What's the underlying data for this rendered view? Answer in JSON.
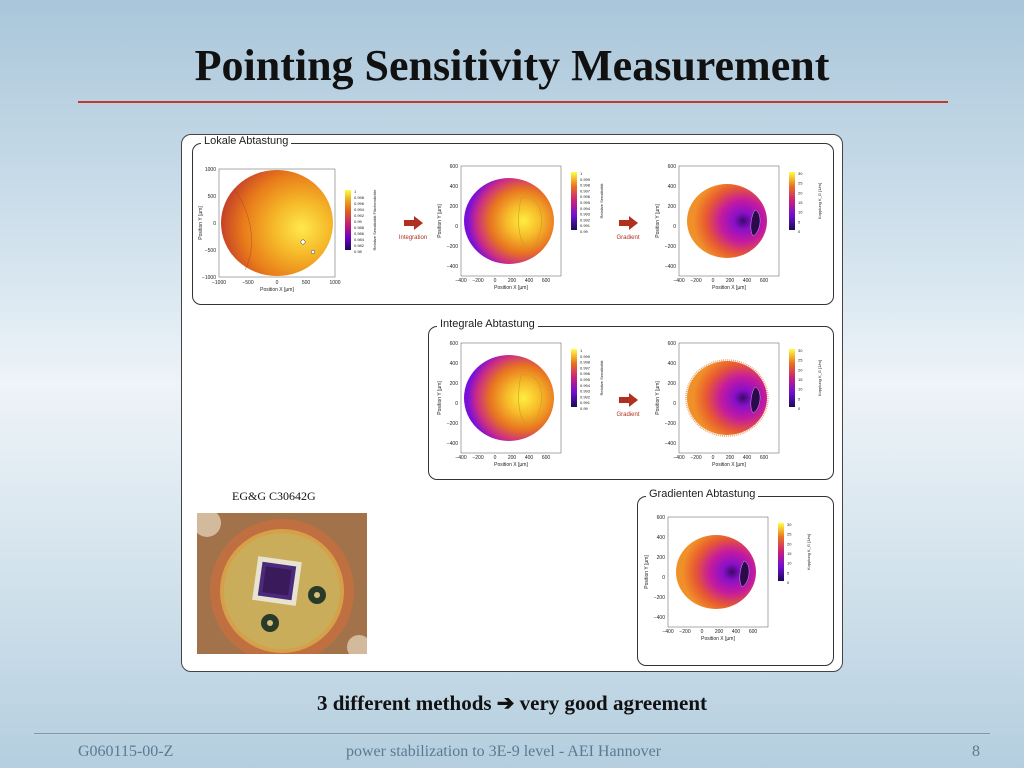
{
  "slide": {
    "title": "Pointing Sensitivity Measurement",
    "summary_prefix": "3 different methods",
    "summary_suffix": "very good agreement",
    "arrow_glyph": "➔"
  },
  "groups": {
    "lokale": "Lokale Abtastung",
    "integrale": "Integrale Abtastung",
    "gradienten": "Gradienten Abtastung"
  },
  "arrows": {
    "integration": "Integration",
    "gradient": "Gradient"
  },
  "axes": {
    "position_x": "Position X [µm]",
    "position_y": "Position Y [µm]",
    "relative_sensitivity_area": "Relative Sensitivität Flächendichte",
    "relative_sensitivity": "Relative Sensitivität",
    "coupling": "Kopplung K_G [1/m]"
  },
  "ticks": {
    "lokal_x": [
      "−1000",
      "−500",
      "0",
      "500",
      "1000"
    ],
    "lokal_y": [
      "1000",
      "500",
      "0",
      "−500",
      "−1000"
    ],
    "small_x": [
      "−400",
      "−200",
      "0",
      "200",
      "400",
      "600"
    ],
    "small_y": [
      "600",
      "400",
      "200",
      "0",
      "−200",
      "−400"
    ],
    "colorbar_lokal": [
      "1",
      "0.998",
      "0.996",
      "0.994",
      "0.992",
      "0.99",
      "0.988",
      "0.986",
      "0.984",
      "0.982",
      "0.98"
    ],
    "colorbar_integ": [
      "1",
      "0.999",
      "0.998",
      "0.997",
      "0.996",
      "0.995",
      "0.994",
      "0.993",
      "0.992",
      "0.991",
      "0.99"
    ],
    "colorbar_coupling": [
      "30",
      "25",
      "20",
      "15",
      "10",
      "5",
      "0"
    ]
  },
  "photo": {
    "caption": "EG&G C30642G"
  },
  "footer": {
    "left": "G060115-00-Z",
    "center": "power stabilization to 3E-9 level  - AEI Hannover",
    "right": "8"
  },
  "colors": {
    "title_rule": "#c0392b",
    "arrow": "#b03020",
    "footer_text": "#5a7a93"
  }
}
